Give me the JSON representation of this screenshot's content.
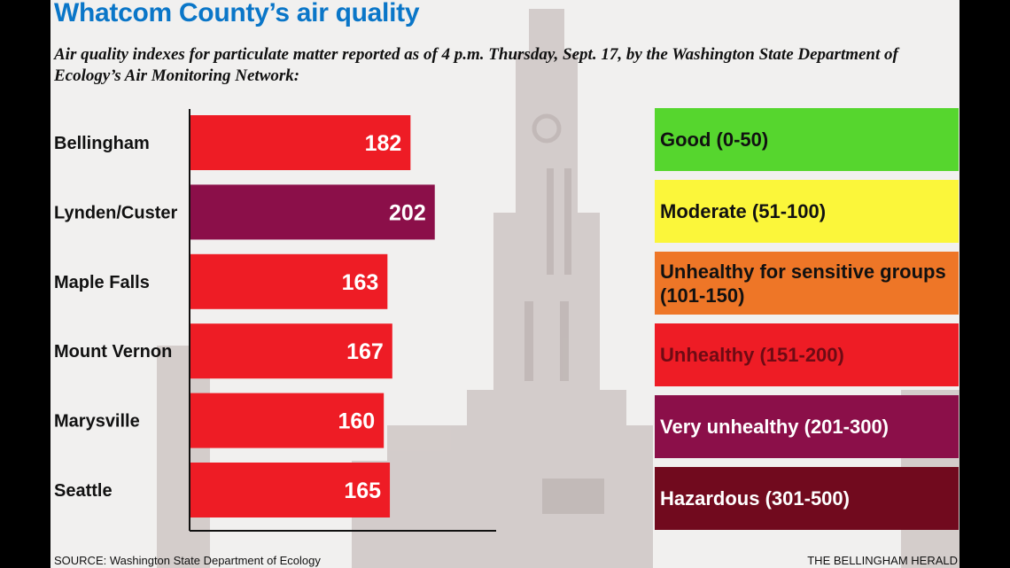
{
  "title": "Whatcom County’s air quality",
  "subtitle": "Air quality indexes for particulate matter reported as of  4 p.m. Thursday, Sept. 17, by the Washington State Department of Ecology’s Air Monitoring Network:",
  "chart_data": {
    "type": "bar",
    "orientation": "horizontal",
    "categories": [
      "Bellingham",
      "Lynden/Custer",
      "Maple Falls",
      "Mount Vernon",
      "Marysville",
      "Seattle"
    ],
    "values": [
      182,
      202,
      163,
      167,
      160,
      165
    ],
    "bar_colors": [
      "#ee1c25",
      "#8b0f49",
      "#ee1c25",
      "#ee1c25",
      "#ee1c25",
      "#ee1c25"
    ],
    "xlim": [
      0,
      350
    ],
    "value_labels": "inside-end",
    "legend": [
      {
        "label": "Good (0-50)",
        "color": "#56d62e",
        "text_color": "#111111"
      },
      {
        "label": "Moderate (51-100)",
        "color": "#fbf63a",
        "text_color": "#111111"
      },
      {
        "label": "Unhealthy for sensitive groups (101-150)",
        "color": "#ee7627",
        "text_color": "#111111"
      },
      {
        "label": "Unhealthy (151-200)",
        "color": "#ee1c25",
        "text_color": "#6e0b14"
      },
      {
        "label": "Very unhealthy (201-300)",
        "color": "#8b0f49",
        "text_color": "#ffffff"
      },
      {
        "label": "Hazardous (301-500)",
        "color": "#710a1e",
        "text_color": "#ffffff"
      }
    ]
  },
  "source": "SOURCE: Washington State Department of Ecology",
  "credit": "THE BELLINGHAM HERALD"
}
